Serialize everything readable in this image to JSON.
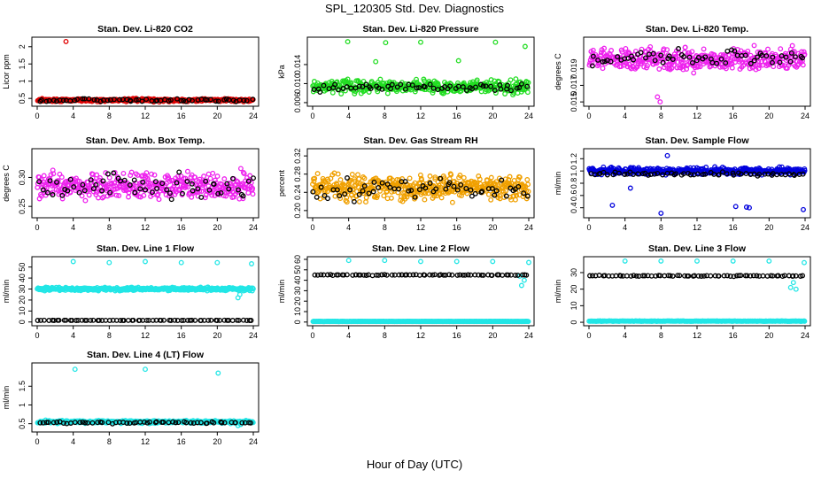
{
  "figure": {
    "title": "SPL_120305  Std. Dev. Diagnostics",
    "xlabel": "Hour of Day (UTC)"
  },
  "chart_data": [
    {
      "type": "scatter",
      "title": "Stan. Dev. Li-820 CO2",
      "xlabel": "",
      "ylabel": "Licor ppm",
      "xlim": [
        0,
        24
      ],
      "ylim": [
        0.35,
        2.2
      ],
      "xticks": [
        0,
        4,
        8,
        12,
        16,
        20,
        24
      ],
      "yticks": [
        0.5,
        1.0,
        1.5,
        2.0
      ],
      "ytick_labels": [
        "0.5",
        "1",
        "1.5",
        "2"
      ],
      "series": [
        {
          "color": "#e00000",
          "base": 0.45,
          "spread": 0.04,
          "n": 300,
          "x": [
            3.2
          ],
          "y": [
            2.15
          ]
        },
        {
          "color": "#000000",
          "base": 0.45,
          "spread": 0.04,
          "n": 60,
          "x": [],
          "y": []
        }
      ]
    },
    {
      "type": "scatter",
      "title": "Stan. Dev. Li-820 Pressure",
      "xlabel": "",
      "ylabel": "kPa",
      "xlim": [
        0,
        24
      ],
      "ylim": [
        0.0058,
        0.0192
      ],
      "xticks": [
        0,
        4,
        8,
        12,
        16,
        20,
        24
      ],
      "yticks": [
        0.006,
        0.01,
        0.014
      ],
      "ytick_labels": [
        "0.006",
        "0.010",
        "0.014"
      ],
      "series": [
        {
          "color": "#22dd22",
          "base": 0.0094,
          "spread": 0.0012,
          "n": 400,
          "x": [
            3.9,
            8.1,
            12.0,
            20.3,
            23.6,
            7.0,
            16.2
          ],
          "y": [
            0.0188,
            0.0186,
            0.0187,
            0.0187,
            0.0178,
            0.0146,
            0.0148
          ]
        },
        {
          "color": "#000000",
          "base": 0.0092,
          "spread": 0.0008,
          "n": 60,
          "x": [],
          "y": []
        }
      ]
    },
    {
      "type": "scatter",
      "title": "Stan. Dev. Li-820 Temp.",
      "xlabel": "",
      "ylabel": "degrees C",
      "xlim": [
        0,
        24
      ],
      "ylim": [
        0.0148,
        0.0225
      ],
      "xticks": [
        0,
        4,
        8,
        12,
        16,
        20,
        24
      ],
      "yticks": [
        0.015,
        0.017,
        0.019
      ],
      "ytick_labels": [
        "0.015",
        "0.017",
        "0.019"
      ],
      "series": [
        {
          "color": "#ee22ee",
          "base": 0.0201,
          "spread": 0.0012,
          "n": 400,
          "x": [
            7.9,
            7.6
          ],
          "y": [
            0.015,
            0.0156
          ]
        },
        {
          "color": "#000000",
          "base": 0.0204,
          "spread": 0.0009,
          "n": 60,
          "x": [],
          "y": []
        }
      ]
    },
    {
      "type": "scatter",
      "title": "Stan. Dev. Amb. Box Temp.",
      "xlabel": "",
      "ylabel": "degrees C",
      "xlim": [
        0,
        24
      ],
      "ylim": [
        0.235,
        0.345
      ],
      "xticks": [
        0,
        4,
        8,
        12,
        16,
        20,
        24
      ],
      "yticks": [
        0.25,
        0.3
      ],
      "ytick_labels": [
        "0.25",
        "0.30"
      ],
      "series": [
        {
          "color": "#ee22ee",
          "base": 0.285,
          "spread": 0.02,
          "n": 400,
          "x": [],
          "y": []
        },
        {
          "color": "#000000",
          "base": 0.286,
          "spread": 0.02,
          "n": 60,
          "x": [],
          "y": []
        }
      ]
    },
    {
      "type": "scatter",
      "title": "Stan. Dev. Gas Stream RH",
      "xlabel": "",
      "ylabel": "percent",
      "xlim": [
        0,
        24
      ],
      "ylim": [
        0.19,
        0.33
      ],
      "xticks": [
        0,
        4,
        8,
        12,
        16,
        20,
        24
      ],
      "yticks": [
        0.2,
        0.24,
        0.28,
        0.32
      ],
      "ytick_labels": [
        "0.20",
        "0.24",
        "0.28",
        "0.32"
      ],
      "series": [
        {
          "color": "#f0a000",
          "base": 0.25,
          "spread": 0.025,
          "n": 450,
          "x": [],
          "y": []
        },
        {
          "color": "#000000",
          "base": 0.247,
          "spread": 0.02,
          "n": 60,
          "x": [],
          "y": []
        }
      ]
    },
    {
      "type": "scatter",
      "title": "Stan. Dev. Sample Flow",
      "xlabel": "",
      "ylabel": "ml/min",
      "xlim": [
        0,
        24
      ],
      "ylim": [
        0.28,
        1.32
      ],
      "xticks": [
        0,
        4,
        8,
        12,
        16,
        20,
        24
      ],
      "yticks": [
        0.4,
        0.6,
        0.8,
        1.0,
        1.2
      ],
      "ytick_labels": [
        "0.4",
        "0.6",
        "0.8",
        "1.0",
        "1.2"
      ],
      "series": [
        {
          "color": "#0000dd",
          "base": 1.0,
          "spread": 0.05,
          "n": 400,
          "x": [
            2.6,
            8.0,
            8.7,
            16.3,
            17.5,
            17.8,
            23.8,
            4.6
          ],
          "y": [
            0.44,
            0.31,
            1.25,
            0.42,
            0.41,
            0.4,
            0.37,
            0.72
          ]
        },
        {
          "color": "#000000",
          "base": 0.95,
          "spread": 0.03,
          "n": 60,
          "x": [],
          "y": []
        }
      ]
    },
    {
      "type": "scatter",
      "title": "Stan. Dev. Line 1 Flow",
      "xlabel": "",
      "ylabel": "ml/min",
      "xlim": [
        0,
        24
      ],
      "ylim": [
        -1,
        57
      ],
      "xticks": [
        0,
        4,
        8,
        12,
        16,
        20,
        24
      ],
      "yticks": [
        0,
        10,
        20,
        30,
        40,
        50
      ],
      "ytick_labels": [
        "0",
        "10",
        "20",
        "30",
        "40",
        "50"
      ],
      "series": [
        {
          "color": "#22e6e6",
          "base": 30,
          "spread": 1.2,
          "n": 450,
          "x": [
            4.0,
            8.0,
            12.0,
            16.0,
            20.0,
            23.8,
            22.3,
            22.5
          ],
          "y": [
            55,
            54,
            55,
            54,
            54,
            53,
            22,
            25
          ]
        },
        {
          "color": "#000000",
          "base": 1.5,
          "spread": 0.1,
          "n": 70,
          "x": [],
          "y": []
        }
      ]
    },
    {
      "type": "scatter",
      "title": "Stan. Dev. Line 2 Flow",
      "xlabel": "",
      "ylabel": "ml/min",
      "xlim": [
        0,
        24
      ],
      "ylim": [
        -1,
        60
      ],
      "xticks": [
        0,
        4,
        8,
        12,
        16,
        20,
        24
      ],
      "yticks": [
        0,
        10,
        20,
        30,
        40,
        50,
        60
      ],
      "ytick_labels": [
        "0",
        "10",
        "20",
        "30",
        "40",
        "50",
        "60"
      ],
      "series": [
        {
          "color": "#22e6e6",
          "base": 0.6,
          "spread": 0.1,
          "n": 300,
          "x": [
            4.0,
            8.0,
            12.0,
            16.0,
            20.0,
            24.0,
            23.2,
            23.5,
            23.0
          ],
          "y": [
            59,
            59,
            58,
            58,
            58,
            57,
            35,
            40,
            44
          ]
        },
        {
          "color": "#000000",
          "base": 45,
          "spread": 0.4,
          "n": 70,
          "x": [],
          "y": []
        }
      ]
    },
    {
      "type": "scatter",
      "title": "Stan. Dev. Line 3 Flow",
      "xlabel": "",
      "ylabel": "ml/min",
      "xlim": [
        0,
        24
      ],
      "ylim": [
        -0.5,
        38
      ],
      "xticks": [
        0,
        4,
        8,
        12,
        16,
        20,
        24
      ],
      "yticks": [
        0,
        10,
        20,
        30
      ],
      "ytick_labels": [
        "0",
        "10",
        "20",
        "30"
      ],
      "series": [
        {
          "color": "#22e6e6",
          "base": 0.7,
          "spread": 0.1,
          "n": 300,
          "x": [
            4.0,
            8.0,
            12.0,
            16.0,
            20.0,
            23.9,
            22.4,
            22.7,
            23.0
          ],
          "y": [
            37,
            37,
            37,
            37,
            37,
            36,
            21,
            24,
            20
          ]
        },
        {
          "color": "#000000",
          "base": 28,
          "spread": 0.3,
          "n": 70,
          "x": [],
          "y": []
        }
      ]
    },
    {
      "type": "scatter",
      "title": "Stan. Dev. Line 4 (LT) Flow",
      "xlabel": "",
      "ylabel": "ml/min",
      "xlim": [
        0,
        24
      ],
      "ylim": [
        0.35,
        2.05
      ],
      "xticks": [
        0,
        4,
        8,
        12,
        16,
        20,
        24
      ],
      "yticks": [
        0.5,
        1.0,
        1.5
      ],
      "ytick_labels": [
        "0.5",
        "1",
        "1.5"
      ],
      "series": [
        {
          "color": "#22e6e6",
          "base": 0.55,
          "spread": 0.035,
          "n": 400,
          "x": [
            4.2,
            12.0,
            20.1,
            22.3,
            22.6
          ],
          "y": [
            1.95,
            1.95,
            1.85,
            0.45,
            0.48
          ]
        },
        {
          "color": "#000000",
          "base": 0.53,
          "spread": 0.03,
          "n": 60,
          "x": [],
          "y": []
        }
      ]
    }
  ]
}
